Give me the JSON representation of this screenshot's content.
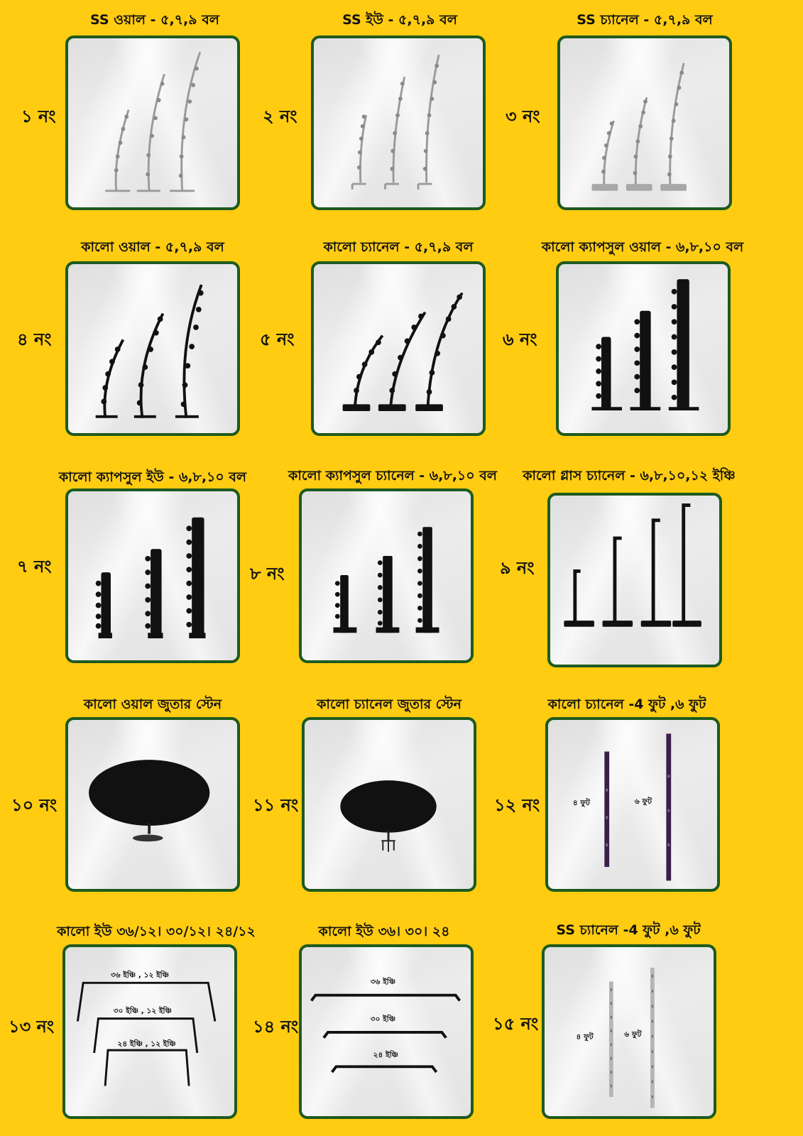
{
  "items": [
    {
      "number": "১ নং",
      "title": "SS ওয়াল - ৫,৭,৯ বল"
    },
    {
      "number": "২ নং",
      "title": "SS ইউ - ৫,৭,৯ বল"
    },
    {
      "number": "৩ নং",
      "title": "SS চ্যানেল  - ৫,৭,৯ বল"
    },
    {
      "number": "৪ নং",
      "title": "কালো ওয়াল - ৫,৭,৯ বল"
    },
    {
      "number": "৫ নং",
      "title": "কালো চ্যানেল - ৫,৭,৯ বল"
    },
    {
      "number": "৬ নং",
      "title": "কালো ক্যাপসুল ওয়াল - ৬,৮,১০ বল"
    },
    {
      "number": "৭ নং",
      "title": "কালো ক্যাপসুল ইউ - ৬,৮,১০ বল"
    },
    {
      "number": "৮ নং",
      "title": "কালো ক্যাপসুল চ্যানেল - ৬,৮,১০ বল"
    },
    {
      "number": "৯ নং",
      "title": "কালো গ্লাস চ্যানেল - ৬,৮,১০,১২ ইঞ্চি"
    },
    {
      "number": "১০ নং",
      "title": "কালো ওয়াল  জুতার স্টেন"
    },
    {
      "number": "১১ নং",
      "title": "কালো চ্যানেল জুতার স্টেন"
    },
    {
      "number": "১২ নং",
      "title": "কালো চ্যানেল -4 ফুট ,৬ ফুট",
      "labels": [
        "৪ ফুট",
        "৬ ফুট"
      ]
    },
    {
      "number": "১৩ নং",
      "title": "কালো ইউ ৩৬/১২। ৩০/১২। ২৪/১২",
      "labels": [
        "৩৬ ইঞ্চি , ১২ ইঞ্চি",
        "৩০ ইঞ্চি , ১২ ইঞ্চি",
        "২৪ ইঞ্চি , ১২ ইঞ্চি"
      ]
    },
    {
      "number": "১৪ নং",
      "title": "কালো ইউ ৩৬। ৩০। ২৪",
      "labels": [
        "৩৬ ইঞ্চি",
        "৩০ ইঞ্চি",
        "২৪ ইঞ্চি"
      ]
    },
    {
      "number": "১৫ নং",
      "title": "SS চ্যানেল -4 ফুট ,৬ ফুট",
      "labels": [
        "৪ ফুট",
        "৬ ফুট"
      ]
    }
  ],
  "colors": {
    "background": "#ffcc12",
    "card_border": "#1e5a1e",
    "steel": "#9a9a9a",
    "black_product": "#111111",
    "purple_channel": "#3a1f4a"
  }
}
